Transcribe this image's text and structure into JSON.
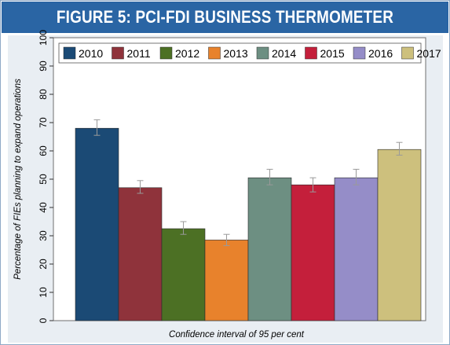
{
  "title": "FIGURE 5: PCI-FDI BUSINESS THERMOMETER",
  "colors": {
    "banner": "#2a65a4",
    "panel": "#e9eef3",
    "error_bar": "#9a9a9a"
  },
  "chart_data": {
    "type": "bar",
    "categories": [
      "2010",
      "2011",
      "2012",
      "2013",
      "2014",
      "2015",
      "2016",
      "2017"
    ],
    "values": [
      68,
      47,
      32.5,
      28.5,
      50.5,
      48,
      50.5,
      60.5
    ],
    "error_low": [
      65.5,
      45,
      30.5,
      26.5,
      48,
      45.5,
      48,
      58.5
    ],
    "error_high": [
      71,
      49.5,
      35,
      30.5,
      53.5,
      50.5,
      53.5,
      63
    ],
    "colors": [
      "#1b4a75",
      "#8f333b",
      "#4c7024",
      "#e8822c",
      "#6d8f82",
      "#c41f3b",
      "#958dc8",
      "#cdc07d"
    ],
    "legend": [
      "2010",
      "2011",
      "2012",
      "2013",
      "2014",
      "2015",
      "2016",
      "2017"
    ],
    "xlabel": "Confidence interval of 95 per cent",
    "ylabel": "Percentage of FIEs planning to expand operations",
    "ylim": [
      0,
      100
    ],
    "yticks": [
      "0",
      "10",
      "20",
      "30",
      "40",
      "50",
      "60",
      "70",
      "80",
      "90",
      "100"
    ],
    "legend_position": "top",
    "grid": false
  }
}
